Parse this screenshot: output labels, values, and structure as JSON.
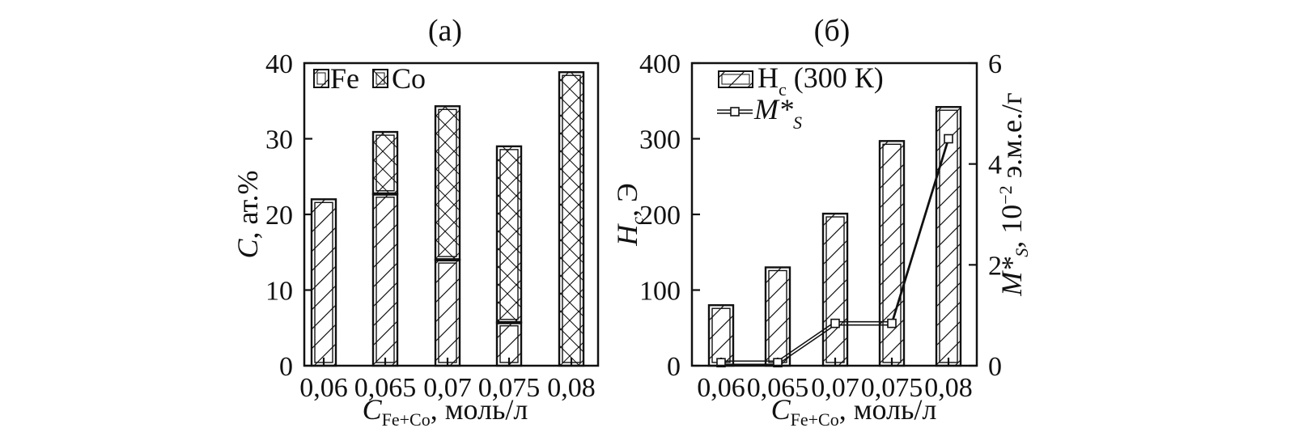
{
  "chart_data": [
    {
      "id": "a",
      "type": "bar",
      "stacked": true,
      "panel_label": "(а)",
      "categories": [
        "0,06",
        "0,065",
        "0,07",
        "0,075",
        "0,08"
      ],
      "series": [
        {
          "name": "Fe",
          "pattern": "hatch-diagonal",
          "values": [
            22,
            22.7,
            14,
            5.7,
            0
          ]
        },
        {
          "name": "Co",
          "pattern": "hatch-cross",
          "values": [
            0,
            8.2,
            20.3,
            23.3,
            38.8
          ]
        }
      ],
      "ylabel": "C, ат.%",
      "ylabel_italic": "C",
      "ylabel_rest": ", ат.%",
      "ylim": [
        0,
        40
      ],
      "yticks": [
        "0",
        "10",
        "20",
        "30",
        "40"
      ],
      "xlabel_main": "C",
      "xlabel_sub": "Fe+Co",
      "xlabel_rest": ", моль/л",
      "legend": [
        {
          "label": "Fe",
          "pattern": "hatch-diagonal"
        },
        {
          "label": "Co",
          "pattern": "hatch-cross"
        }
      ],
      "legend_position": "top-left"
    },
    {
      "id": "b",
      "type": "bar+line",
      "panel_label": "(б)",
      "categories": [
        "0,06",
        "0,065",
        "0,07",
        "0,075",
        "0,08"
      ],
      "bars": {
        "name": "Hc (300 K)",
        "values": [
          80,
          130,
          201,
          297,
          342
        ]
      },
      "line": {
        "name": "M*s",
        "values": [
          0.06,
          0.06,
          0.84,
          0.84,
          4.5
        ]
      },
      "ylabel_left_main": "H",
      "ylabel_left_sub": "c",
      "ylabel_left_rest": ", Э",
      "ylim_left": [
        0,
        400
      ],
      "yticks_left": [
        "0",
        "100",
        "200",
        "300",
        "400"
      ],
      "ylabel_right_main": "M*",
      "ylabel_right_sub": "S",
      "ylabel_right_rest": ", 10",
      "ylabel_right_exp": "−2",
      "ylabel_right_unit": " э.м.е./г",
      "ylim_right": [
        0,
        6
      ],
      "yticks_right": [
        "0",
        "2",
        "4",
        "6"
      ],
      "xlabel_main": "C",
      "xlabel_sub": "Fe+Co",
      "xlabel_rest": ", моль/л",
      "legend": [
        {
          "label_main": "H",
          "label_sub": "c",
          "label_rest": " (300 К)",
          "kind": "hatched-bar"
        },
        {
          "label_main": "M*",
          "label_sub": "S",
          "kind": "line-square-marker"
        }
      ],
      "legend_position": "top-left"
    }
  ]
}
